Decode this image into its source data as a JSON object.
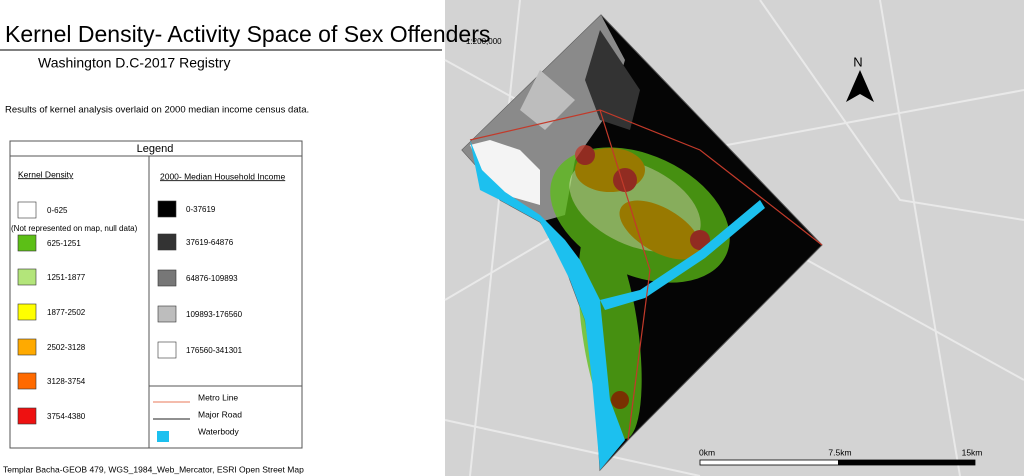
{
  "title": "Kernel Density- Activity Space of Sex Offenders",
  "subtitle": "Washington D.C-2017 Registry",
  "description": "Results of kernel analysis overlaid on 2000 median income census data.",
  "scale_text": "1:200,000",
  "north": "N",
  "legend": {
    "title": "Legend",
    "kernel": {
      "title": "Kernel Density",
      "items": [
        {
          "label": "0-625",
          "note": "(Not represented on map, null data)",
          "color": "#ffffff"
        },
        {
          "label": "625-1251",
          "color": "#5cbf16"
        },
        {
          "label": "1251-1877",
          "color": "#b3e57a"
        },
        {
          "label": "1877-2502",
          "color": "#ffff00"
        },
        {
          "label": "2502-3128",
          "color": "#ffaa00"
        },
        {
          "label": "3128-3754",
          "color": "#ff6a00"
        },
        {
          "label": "3754-4380",
          "color": "#ee1111"
        }
      ]
    },
    "income": {
      "title": "2000- Median Household Income",
      "items": [
        {
          "label": "0-37619",
          "color": "#000000"
        },
        {
          "label": "37619-64876",
          "color": "#333333"
        },
        {
          "label": "64876-109893",
          "color": "#777777"
        },
        {
          "label": "109893-176560",
          "color": "#bdbdbd"
        },
        {
          "label": "176560-341301",
          "color": "#ffffff"
        }
      ]
    },
    "features": [
      {
        "label": "Metro Line",
        "kind": "line",
        "color": "#e8795a"
      },
      {
        "label": "Major Road",
        "kind": "line",
        "color": "#222222"
      },
      {
        "label": "Waterbody",
        "kind": "box",
        "color": "#1cc0ef"
      }
    ]
  },
  "scalebar": [
    "0km",
    "7.5km",
    "15km"
  ],
  "credit": "Templar Bacha-GEOB 479, WGS_1984_Web_Mercator,  ESRI Open Street Map"
}
